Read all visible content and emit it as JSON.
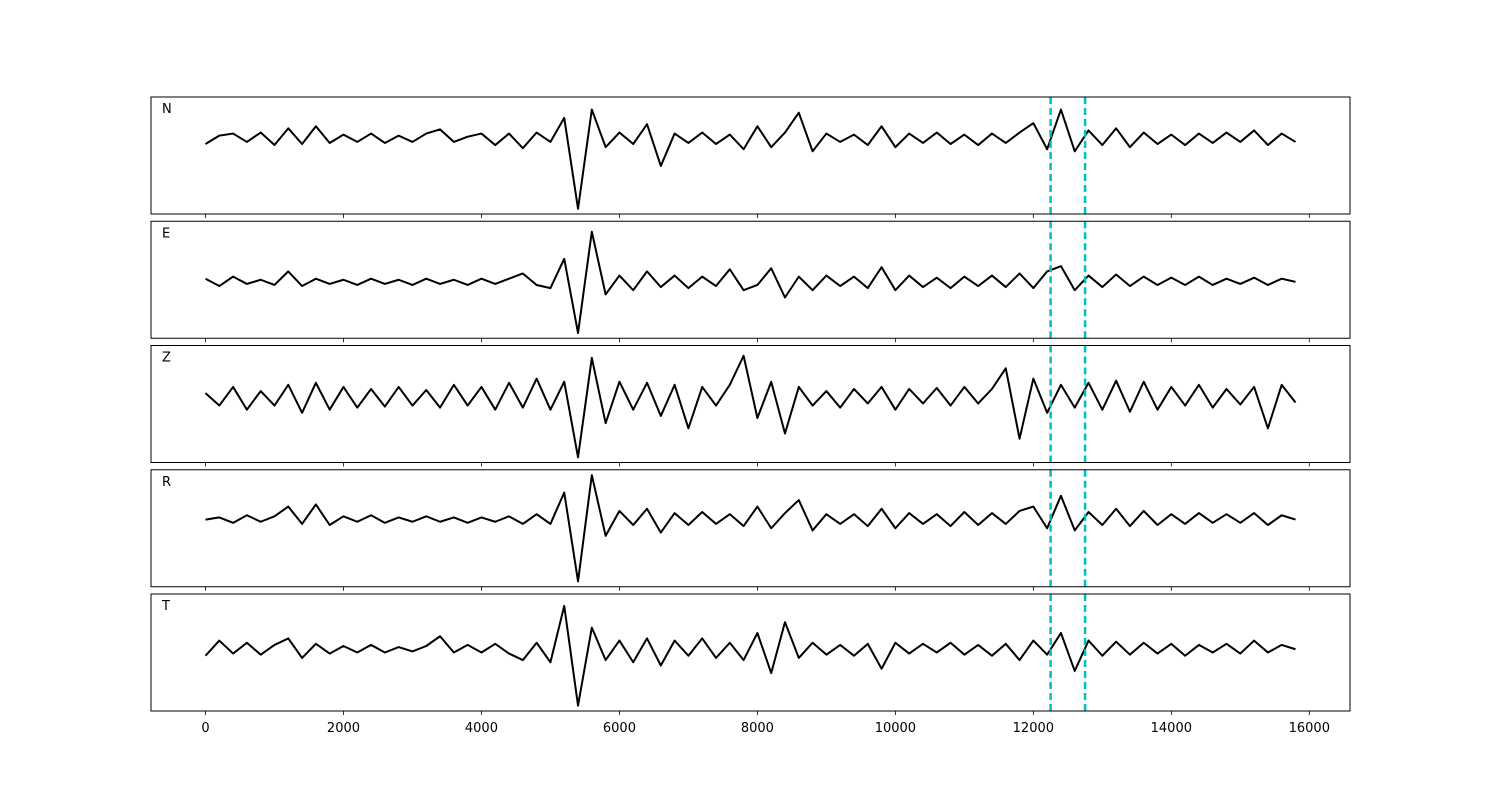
{
  "chart_data": {
    "type": "line",
    "x": [
      0,
      200,
      400,
      600,
      800,
      1000,
      1200,
      1400,
      1600,
      1800,
      2000,
      2200,
      2400,
      2600,
      2800,
      3000,
      3200,
      3400,
      3600,
      3800,
      4000,
      4200,
      4400,
      4600,
      4800,
      5000,
      5200,
      5400,
      5600,
      5800,
      6000,
      6200,
      6400,
      6600,
      6800,
      7000,
      7200,
      7400,
      7600,
      7800,
      8000,
      8200,
      8400,
      8600,
      8800,
      9000,
      9200,
      9400,
      9600,
      9800,
      10000,
      10200,
      10400,
      10600,
      10800,
      11000,
      11200,
      11400,
      11600,
      11800,
      12000,
      12200,
      12400,
      12600,
      12800,
      13000,
      13200,
      13400,
      13600,
      13800,
      14000,
      14200,
      14400,
      14600,
      14800,
      15000,
      15200,
      15400,
      15600,
      15800
    ],
    "xlim": [
      -790,
      16590
    ],
    "xticks": [
      0,
      2000,
      4000,
      6000,
      8000,
      10000,
      12000,
      14000,
      16000
    ],
    "vlines": [
      12250,
      12750
    ],
    "vline_color": "#00bfbf",
    "series": [
      {
        "name": "N",
        "color": "#000000",
        "ylim": [
          -72,
          40
        ],
        "values": [
          -5,
          3,
          5,
          -3,
          6,
          -6,
          10,
          -5,
          12,
          -4,
          4,
          -3,
          5,
          -4,
          3,
          -3,
          5,
          9,
          -3,
          2,
          5,
          -6,
          5,
          -9,
          6,
          -3,
          20,
          -67,
          28,
          -8,
          6,
          -5,
          14,
          -26,
          5,
          -4,
          6,
          -5,
          4,
          -10,
          12,
          -8,
          6,
          25,
          -12,
          5,
          -3,
          4,
          -6,
          12,
          -8,
          5,
          -4,
          6,
          -5,
          4,
          -6,
          5,
          -4,
          6,
          15,
          -10,
          28,
          -12,
          8,
          -6,
          10,
          -8,
          6,
          -5,
          4,
          -6,
          5,
          -4,
          6,
          -3,
          8,
          -6,
          5,
          -3
        ]
      },
      {
        "name": "E",
        "color": "#000000",
        "ylim": [
          -54,
          58
        ],
        "values": [
          3,
          -4,
          5,
          -2,
          2,
          -3,
          10,
          -4,
          3,
          -2,
          2,
          -3,
          3,
          -2,
          2,
          -3,
          3,
          -2,
          2,
          -3,
          3,
          -2,
          3,
          8,
          -3,
          -6,
          22,
          -49,
          48,
          -12,
          6,
          -8,
          10,
          -5,
          6,
          -6,
          5,
          -4,
          12,
          -8,
          -3,
          13,
          -15,
          5,
          -8,
          6,
          -4,
          5,
          -6,
          14,
          -8,
          6,
          -5,
          4,
          -6,
          5,
          -4,
          6,
          -5,
          8,
          -6,
          10,
          15,
          -8,
          6,
          -5,
          7,
          -4,
          5,
          -3,
          4,
          -3,
          5,
          -3,
          3,
          -2,
          4,
          -3,
          3,
          0
        ]
      },
      {
        "name": "Z",
        "color": "#000000",
        "ylim": [
          -63,
          50
        ],
        "values": [
          4,
          -8,
          10,
          -12,
          6,
          -8,
          12,
          -15,
          14,
          -12,
          10,
          -10,
          8,
          -9,
          10,
          -8,
          7,
          -10,
          12,
          -8,
          10,
          -12,
          14,
          -10,
          18,
          -12,
          15,
          -58,
          38,
          -25,
          15,
          -12,
          14,
          -18,
          12,
          -30,
          10,
          -8,
          12,
          40,
          -20,
          15,
          -35,
          10,
          -8,
          6,
          -10,
          8,
          -6,
          10,
          -12,
          8,
          -6,
          9,
          -8,
          10,
          -6,
          8,
          28,
          -40,
          18,
          -15,
          12,
          -10,
          14,
          -12,
          16,
          -14,
          15,
          -12,
          10,
          -8,
          12,
          -10,
          8,
          -7,
          10,
          -30,
          12,
          -5
        ]
      },
      {
        "name": "R",
        "color": "#000000",
        "ylim": [
          -62,
          46
        ],
        "values": [
          0,
          2,
          -3,
          4,
          -2,
          3,
          12,
          -4,
          14,
          -5,
          3,
          -2,
          4,
          -3,
          2,
          -2,
          3,
          -2,
          2,
          -3,
          2,
          -2,
          3,
          -4,
          5,
          -4,
          25,
          -57,
          41,
          -15,
          8,
          -5,
          10,
          -12,
          6,
          -5,
          7,
          -4,
          5,
          -6,
          12,
          -8,
          6,
          18,
          -10,
          5,
          -4,
          5,
          -6,
          10,
          -8,
          6,
          -4,
          5,
          -6,
          7,
          -5,
          6,
          -4,
          8,
          12,
          -8,
          22,
          -10,
          7,
          -5,
          10,
          -6,
          8,
          -5,
          5,
          -4,
          6,
          -3,
          5,
          -3,
          6,
          -5,
          4,
          0
        ]
      },
      {
        "name": "T",
        "color": "#000000",
        "ylim": [
          -57,
          51
        ],
        "values": [
          -6,
          8,
          -4,
          6,
          -5,
          4,
          10,
          -8,
          5,
          -4,
          3,
          -3,
          4,
          -3,
          2,
          -2,
          3,
          12,
          -3,
          4,
          -3,
          5,
          -4,
          -10,
          6,
          -12,
          40,
          -52,
          20,
          -10,
          8,
          -12,
          10,
          -15,
          8,
          -6,
          10,
          -8,
          6,
          -10,
          15,
          -22,
          25,
          -8,
          6,
          -5,
          4,
          -6,
          5,
          -18,
          6,
          -4,
          5,
          -3,
          6,
          -5,
          4,
          -6,
          5,
          -10,
          8,
          -5,
          15,
          -20,
          8,
          -6,
          7,
          -5,
          6,
          -4,
          5,
          -6,
          4,
          -3,
          5,
          -4,
          8,
          -3,
          4,
          0
        ]
      }
    ]
  }
}
